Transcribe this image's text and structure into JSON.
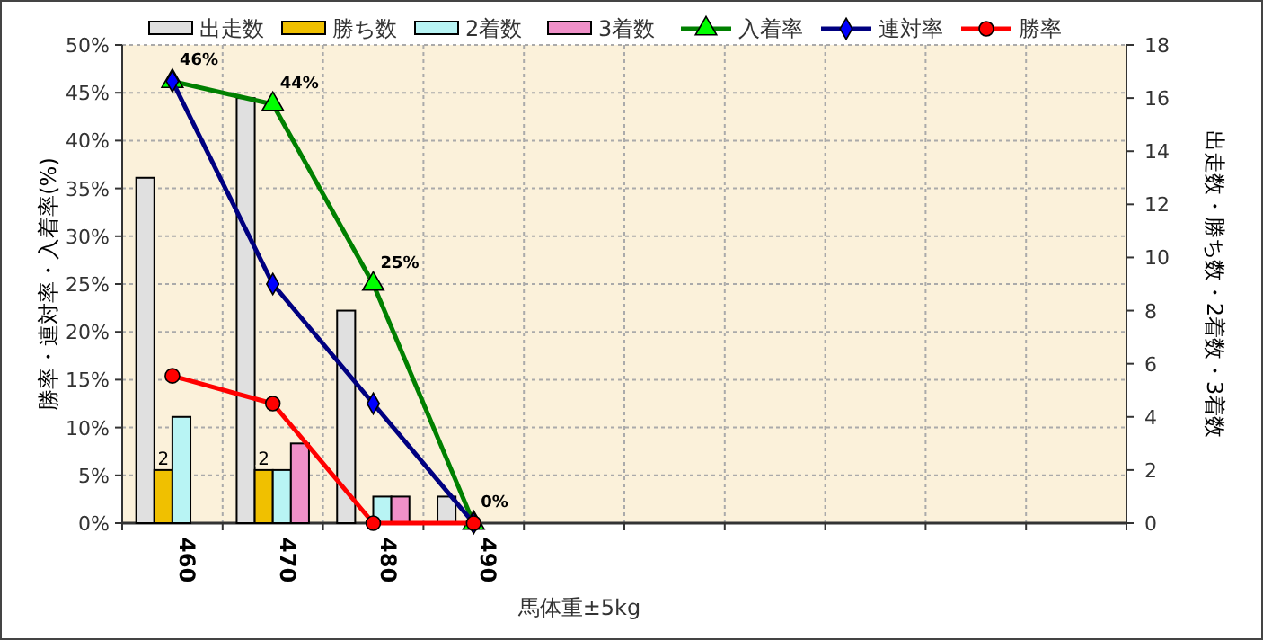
{
  "chart_data": {
    "type": "bar",
    "xlabel": "馬体重±5kg",
    "ylabel": "勝率・連対率・入着率(%)",
    "y2label": "出走数・勝ち数・2着数・3着数",
    "categories": [
      "460",
      "470",
      "480",
      "490",
      null,
      null,
      null,
      null,
      null,
      null
    ],
    "series": [
      {
        "name": "出走数",
        "axis": "y2",
        "color": "#e0e0e0",
        "values": [
          13,
          16,
          8,
          1,
          null,
          null,
          null,
          null,
          null,
          null
        ]
      },
      {
        "name": "勝ち数",
        "axis": "y2",
        "color": "#f0c000",
        "values": [
          2,
          2,
          0,
          0,
          null,
          null,
          null,
          null,
          null,
          null
        ],
        "value_labels": [
          "2",
          "2",
          null,
          null,
          null,
          null,
          null,
          null,
          null,
          null
        ]
      },
      {
        "name": "2着数",
        "axis": "y2",
        "color": "#b8f4f4",
        "values": [
          4,
          2,
          1,
          0,
          null,
          null,
          null,
          null,
          null,
          null
        ]
      },
      {
        "name": "3着数",
        "axis": "y2",
        "color": "#f090c8",
        "values": [
          0,
          3,
          1,
          0,
          null,
          null,
          null,
          null,
          null,
          null
        ]
      },
      {
        "name": "入着率",
        "type": "line",
        "axis": "y",
        "color": "#008000",
        "marker": "triangle",
        "values": [
          46.2,
          43.8,
          25,
          0,
          null,
          null,
          null,
          null,
          null,
          null
        ],
        "value_labels": [
          "46%",
          "44%",
          "25%",
          "0%",
          null,
          null,
          null,
          null,
          null,
          null
        ]
      },
      {
        "name": "連対率",
        "type": "line",
        "axis": "y",
        "color": "#000080",
        "marker": "diamond",
        "values": [
          46.2,
          25,
          12.5,
          0,
          null,
          null,
          null,
          null,
          null,
          null
        ]
      },
      {
        "name": "勝率",
        "type": "line",
        "axis": "y",
        "color": "#ff0000",
        "marker": "circle",
        "values": [
          15.4,
          12.5,
          0,
          0,
          null,
          null,
          null,
          null,
          null,
          null
        ]
      }
    ],
    "ylim": [
      0,
      50
    ],
    "yticks": [
      {
        "value": 0,
        "label": "0%"
      },
      {
        "value": 5,
        "label": "5%"
      },
      {
        "value": 10,
        "label": "10%"
      },
      {
        "value": 15,
        "label": "15%"
      },
      {
        "value": 20,
        "label": "20%"
      },
      {
        "value": 25,
        "label": "25%"
      },
      {
        "value": 30,
        "label": "30%"
      },
      {
        "value": 35,
        "label": "35%"
      },
      {
        "value": 40,
        "label": "40%"
      },
      {
        "value": 45,
        "label": "45%"
      },
      {
        "value": 50,
        "label": "50%"
      }
    ],
    "y2lim": [
      0,
      18
    ],
    "y2ticks": [
      0,
      2,
      4,
      6,
      8,
      10,
      12,
      14,
      16,
      18
    ],
    "grid": true,
    "legend": "top"
  }
}
